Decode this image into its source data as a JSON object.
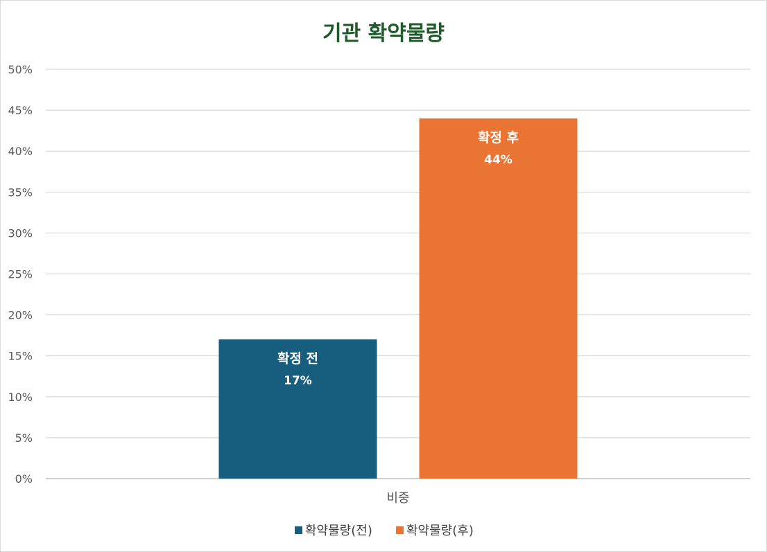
{
  "chart_data": {
    "type": "bar",
    "title": "기관 확약물량",
    "categories": [
      "비중"
    ],
    "series": [
      {
        "name": "확약물량(전)",
        "values": [
          17
        ],
        "bar_label": "확정 전",
        "value_label": "17%",
        "color": "#175e7e"
      },
      {
        "name": "확약물량(후)",
        "values": [
          44
        ],
        "bar_label": "확정 후",
        "value_label": "44%",
        "color": "#e97433"
      }
    ],
    "ylim": [
      0,
      50
    ],
    "y_ticks": [
      "0%",
      "5%",
      "10%",
      "15%",
      "20%",
      "25%",
      "30%",
      "35%",
      "40%",
      "45%",
      "50%"
    ],
    "grid": true,
    "legend_position": "bottom",
    "unit": "%"
  }
}
